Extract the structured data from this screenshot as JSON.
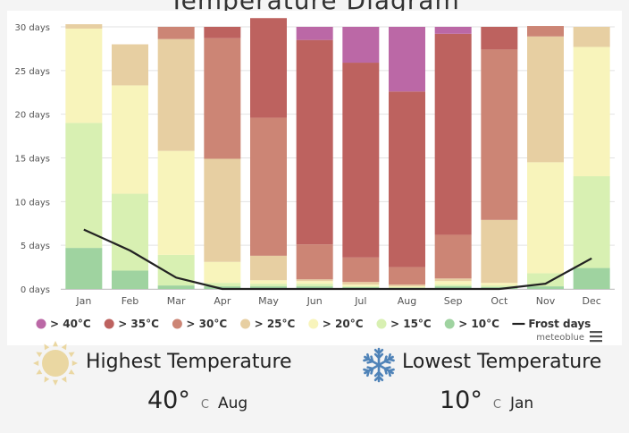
{
  "page": {
    "title": "Temperature Diagram"
  },
  "chart_data": {
    "type": "bar",
    "stacked": true,
    "categories": [
      "Jan",
      "Feb",
      "Mar",
      "Apr",
      "May",
      "Jun",
      "Jul",
      "Aug",
      "Sep",
      "Oct",
      "Nov",
      "Dec"
    ],
    "ylim": [
      0,
      30
    ],
    "yticks": [
      "0 days",
      "5 days",
      "10 days",
      "15 days",
      "20 days",
      "25 days",
      "30 days"
    ],
    "grid": true,
    "legend_position": "bottom",
    "series": [
      {
        "name": "> 10°C",
        "color": "#9fd3a0",
        "values": [
          4.7,
          2.1,
          0.4,
          0.3,
          0.3,
          0.3,
          0.2,
          0.1,
          0.3,
          0.2,
          0.3,
          2.4
        ]
      },
      {
        "name": "> 15°C",
        "color": "#d8f0b2",
        "values": [
          14.3,
          8.8,
          3.5,
          0.4,
          0.3,
          0.3,
          0.1,
          0.1,
          0.2,
          0.2,
          1.5,
          10.5
        ]
      },
      {
        "name": "> 20°C",
        "color": "#f8f4bb",
        "values": [
          10.8,
          12.4,
          11.9,
          2.4,
          0.4,
          0.3,
          0.2,
          0.1,
          0.4,
          0.3,
          12.7,
          14.8
        ]
      },
      {
        "name": "> 25°C",
        "color": "#e7cfa2",
        "values": [
          0.5,
          4.7,
          12.8,
          11.8,
          2.8,
          0.2,
          0.3,
          0.2,
          0.3,
          7.2,
          14.4,
          2.3
        ]
      },
      {
        "name": "> 30°C",
        "color": "#cc8575",
        "values": [
          0,
          0,
          1.4,
          13.8,
          15.8,
          4.0,
          2.8,
          2.0,
          5.0,
          19.5,
          1.2,
          0
        ]
      },
      {
        "name": "> 35°C",
        "color": "#bd625f",
        "values": [
          0,
          0,
          0,
          1.3,
          11.4,
          23.4,
          22.3,
          20.1,
          23.0,
          2.6,
          0,
          0
        ]
      },
      {
        "name": "> 40°C",
        "color": "#bb68a6",
        "values": [
          0,
          0,
          0,
          0,
          0,
          1.5,
          4.1,
          7.4,
          0.8,
          0,
          0,
          0
        ]
      }
    ],
    "line_series": {
      "name": "Frost days",
      "color": "#222222",
      "values": [
        6.8,
        4.4,
        1.3,
        0,
        0,
        0,
        0,
        0,
        0,
        0,
        0.6,
        3.5
      ]
    },
    "legend_order": [
      "> 40°C",
      "> 35°C",
      "> 30°C",
      "> 25°C",
      "> 20°C",
      "> 15°C",
      "> 10°C",
      "Frost days"
    ],
    "credit": "meteoblue"
  },
  "stats": {
    "highest": {
      "title": "Highest Temperature",
      "value": "40°",
      "unit": "C",
      "month": "Aug",
      "icon": "sun-icon",
      "icon_color": "#ead7a2"
    },
    "lowest": {
      "title": "Lowest Temperature",
      "value": "10°",
      "unit": "C",
      "month": "Jan",
      "icon": "snowflake-icon",
      "icon_color": "#4f83b8"
    }
  }
}
